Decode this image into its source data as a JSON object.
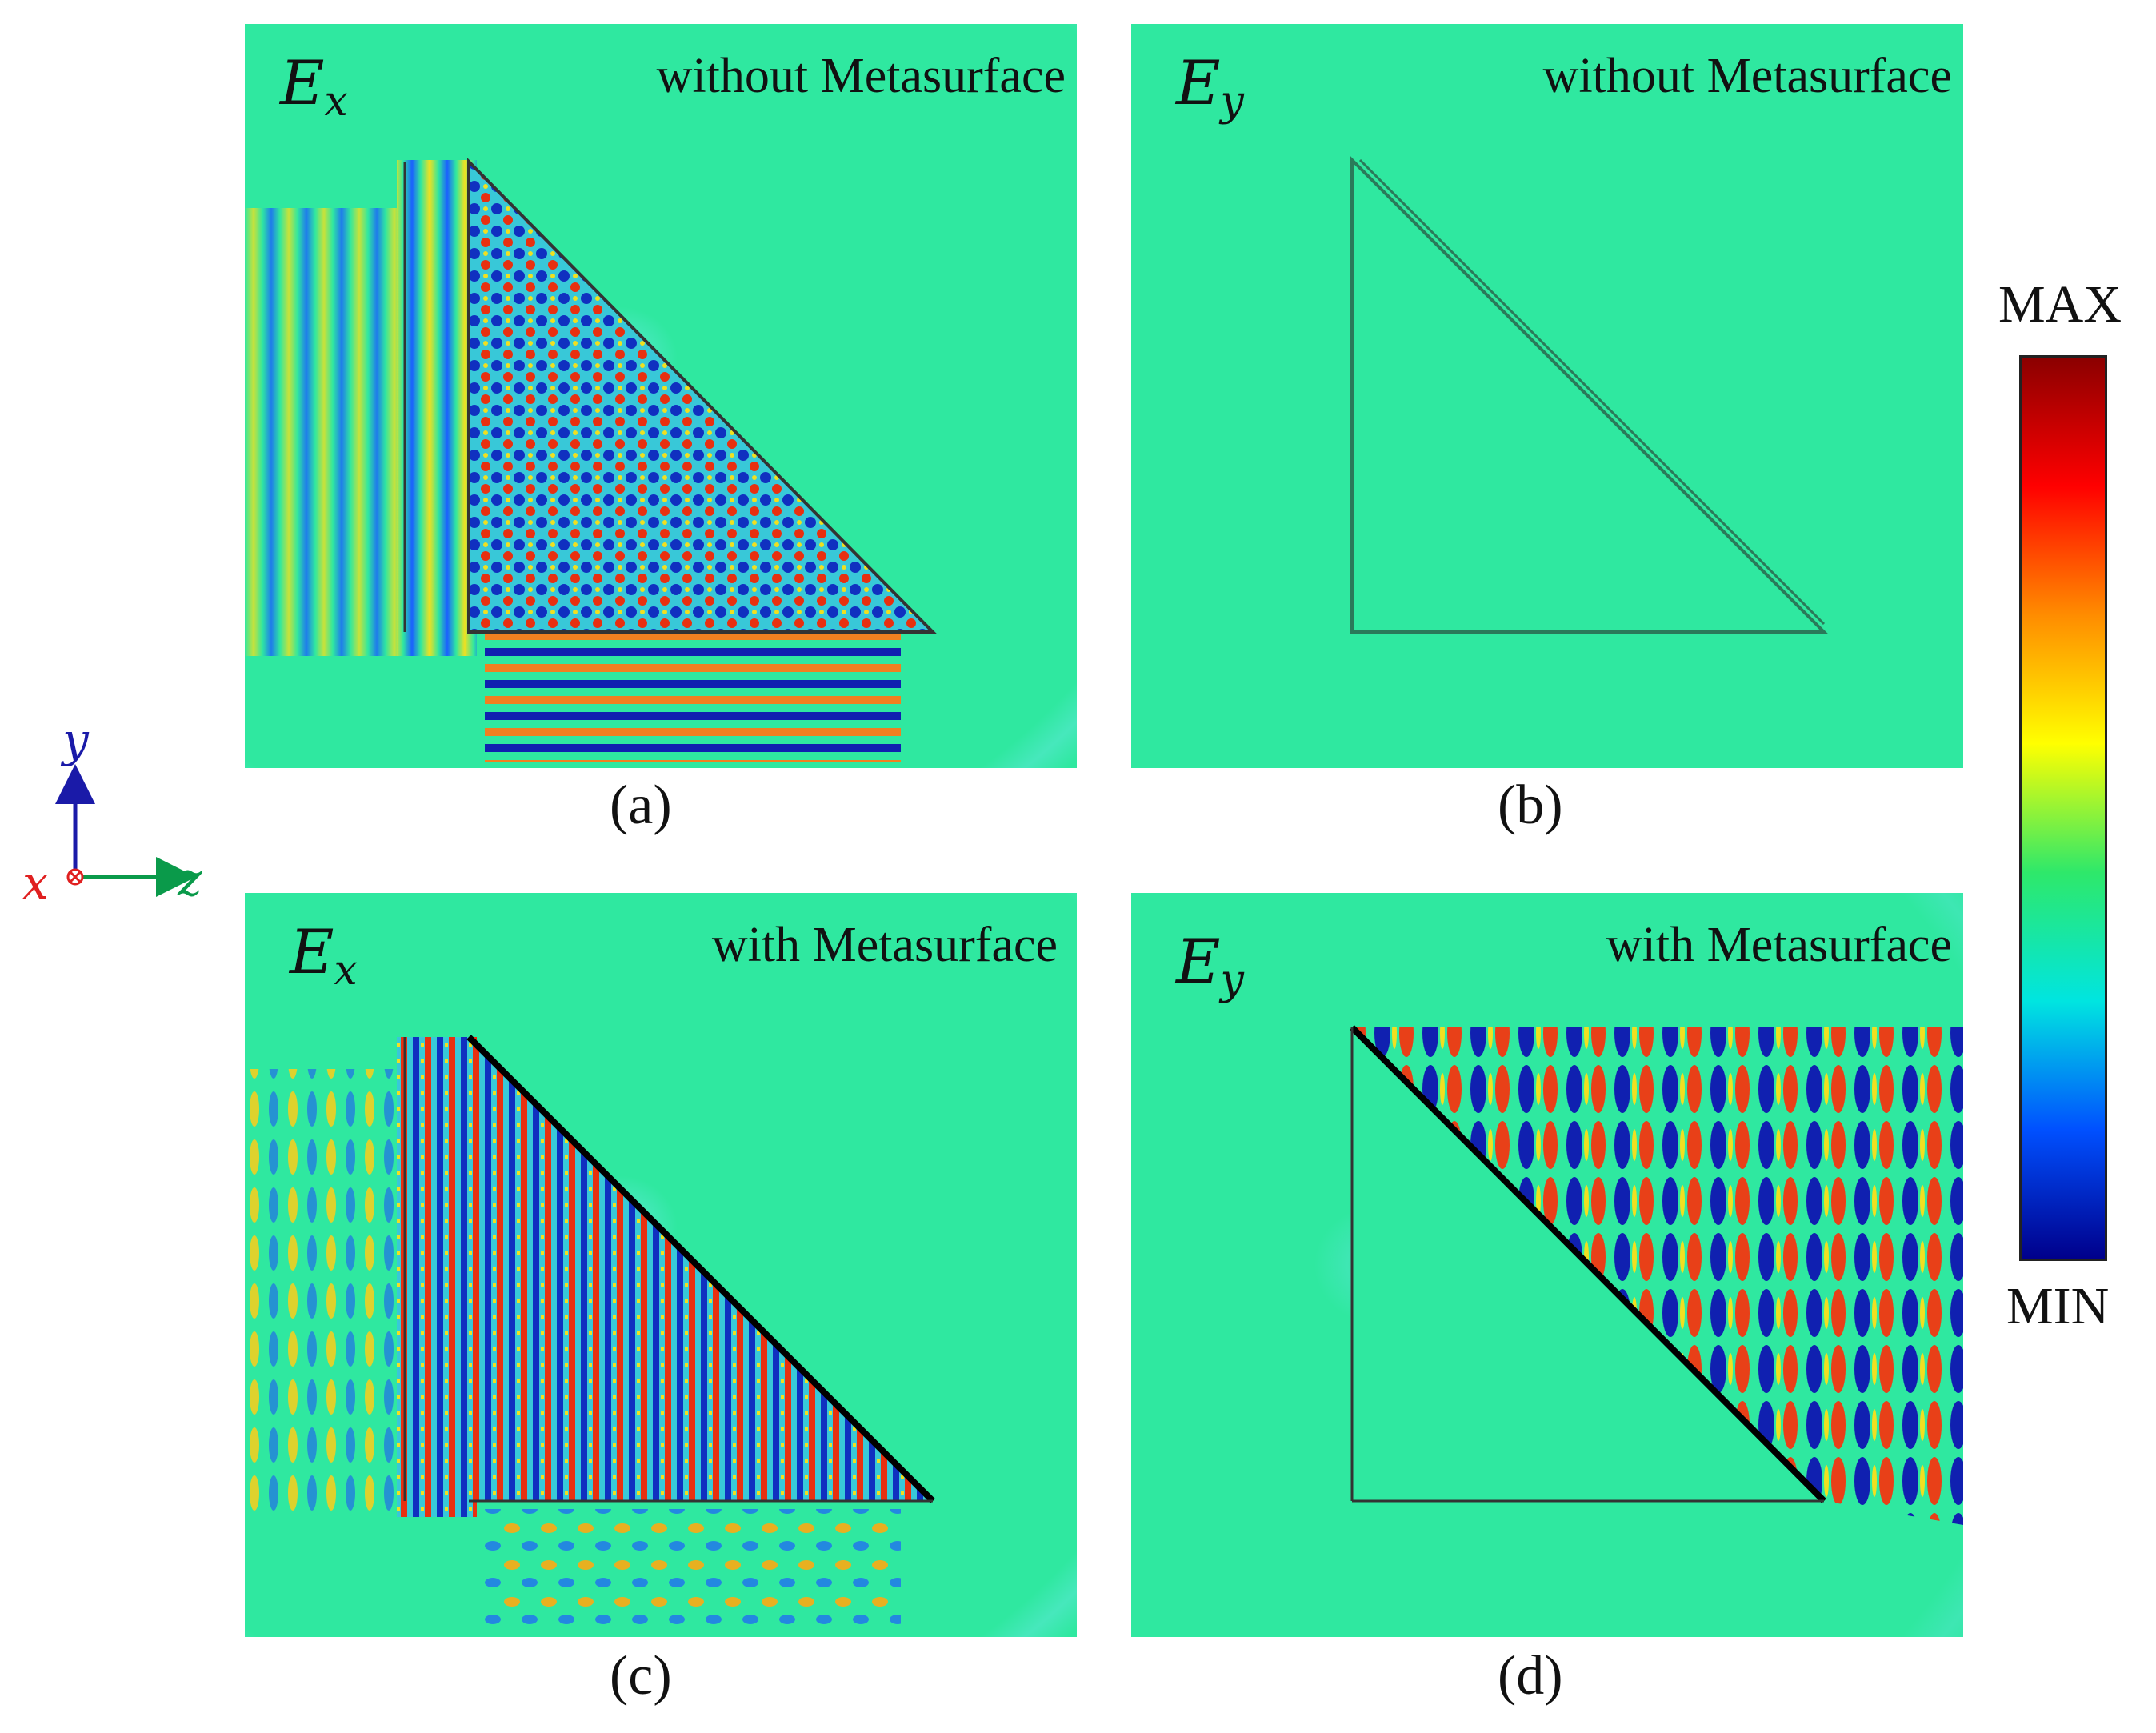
{
  "panels": [
    {
      "id": "a",
      "field_symbol": "E",
      "field_subscript": "x",
      "condition": "without Metasurface",
      "caption": "(a)"
    },
    {
      "id": "b",
      "field_symbol": "E",
      "field_subscript": "y",
      "condition": "without Metasurface",
      "caption": "(b)"
    },
    {
      "id": "c",
      "field_symbol": "E",
      "field_subscript": "x",
      "condition": "with Metasurface",
      "caption": "(c)"
    },
    {
      "id": "d",
      "field_symbol": "E",
      "field_subscript": "y",
      "condition": "with Metasurface",
      "caption": "(d)"
    }
  ],
  "colorbar": {
    "max_label": "MAX",
    "min_label": "MIN",
    "colors": [
      "#8b0000",
      "#ff0000",
      "#ff8c00",
      "#ffff00",
      "#2ee86a",
      "#00e5e0",
      "#0050ff",
      "#00008b"
    ]
  },
  "axes": {
    "y": "y",
    "x": "x",
    "z": "z",
    "y_color": "#1a1aa8",
    "x_color": "#e02020",
    "z_color": "#0a9a4a"
  },
  "background_color": "#2fe8a0"
}
